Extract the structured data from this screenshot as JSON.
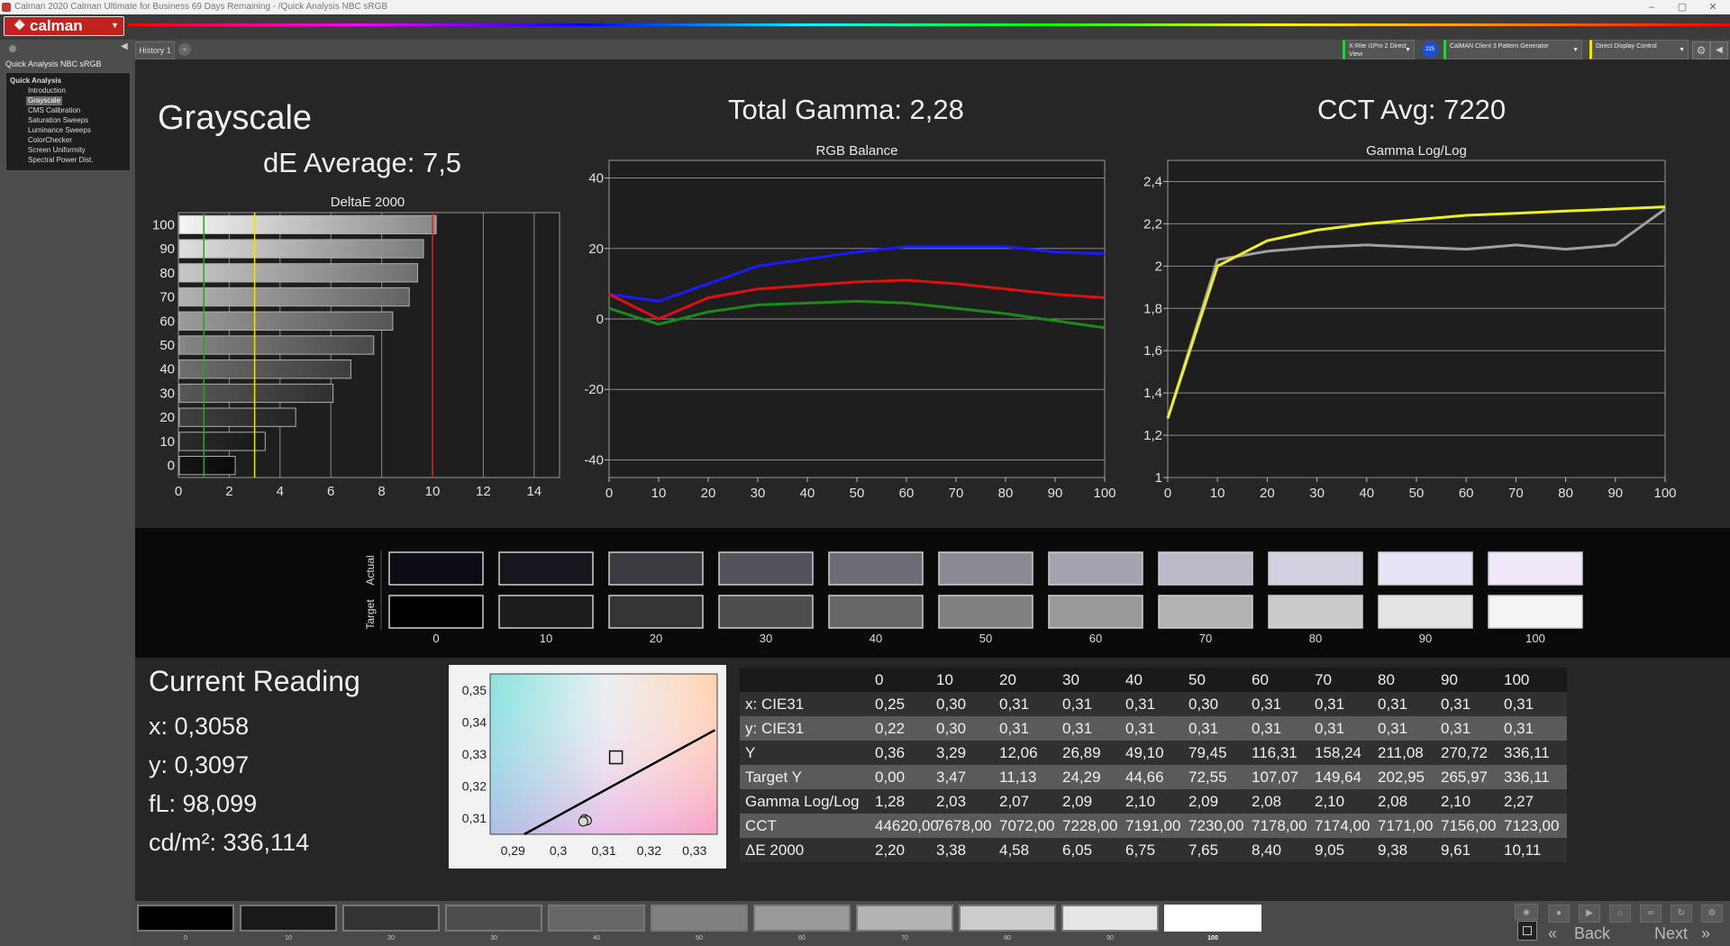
{
  "window": {
    "title": "Calman 2020 Calman Ultimate for Business 69 Days Remaining  - /Quick Analysis NBC sRGB",
    "controls": [
      "–",
      "▢",
      "✕"
    ]
  },
  "app": {
    "logo": "calman"
  },
  "sidebar": {
    "workflow_title": "Quick Analysis NBC sRGB",
    "tree_root": "Quick Analysis",
    "items": [
      "Introduction",
      "Grayscale",
      "CMS Calibration",
      "Saturation Sweeps",
      "Luminance Sweeps",
      "ColorChecker",
      "Screen Uniformity",
      "Spectral Power Dist."
    ],
    "selected_index": 1
  },
  "tabs": {
    "history": "History 1"
  },
  "devices": {
    "meter": "X-Rite i1Pro 2 Direct View",
    "meter_badge": "225",
    "pattern_gen": "CalMAN Client 3 Pattern Generator",
    "display_control": "Direct Display Control"
  },
  "summary": {
    "page_title": "Grayscale",
    "de_average": "dE Average: 7,5",
    "total_gamma": "Total Gamma: 2,28",
    "cct_avg": "CCT Avg: 7220"
  },
  "chart_data": [
    {
      "type": "bar",
      "title": "DeltaE 2000",
      "categories": [
        "0",
        "10",
        "20",
        "30",
        "40",
        "50",
        "60",
        "70",
        "80",
        "90",
        "100"
      ],
      "values": [
        2.2,
        3.38,
        4.58,
        6.05,
        6.75,
        7.65,
        8.4,
        9.05,
        9.38,
        9.61,
        10.11
      ],
      "xlim": [
        0,
        15
      ],
      "xticks": [
        "0",
        "2",
        "4",
        "6",
        "8",
        "10",
        "12",
        "14"
      ],
      "reference_lines": [
        {
          "value": 1,
          "color": "#2ca02c"
        },
        {
          "value": 3,
          "color": "#e6e600"
        },
        {
          "value": 10,
          "color": "#e02020"
        }
      ],
      "orientation": "horizontal"
    },
    {
      "type": "line",
      "title": "RGB Balance",
      "x": [
        0,
        10,
        20,
        30,
        40,
        50,
        60,
        70,
        80,
        90,
        100
      ],
      "ylim": [
        -45,
        45
      ],
      "yticks": [
        "40",
        "20",
        "0",
        "-20",
        "-40"
      ],
      "xticks": [
        "0",
        "10",
        "20",
        "30",
        "40",
        "50",
        "60",
        "70",
        "80",
        "90",
        "100"
      ],
      "series": [
        {
          "color": "#1a1aff",
          "values": [
            7,
            5,
            10,
            15,
            17,
            19,
            20.5,
            20.5,
            20.5,
            19,
            18.5
          ]
        },
        {
          "color": "#e01010",
          "values": [
            7,
            0,
            6,
            8.5,
            9.5,
            10.5,
            11,
            10,
            8.5,
            7,
            6
          ]
        },
        {
          "color": "#1a8a1a",
          "values": [
            3,
            -1.5,
            2,
            4,
            4.5,
            5,
            4.5,
            3,
            1.5,
            -0.5,
            -2.5
          ]
        }
      ]
    },
    {
      "type": "line",
      "title": "Gamma Log/Log",
      "x": [
        0,
        10,
        20,
        30,
        40,
        50,
        60,
        70,
        80,
        90,
        100
      ],
      "ylim": [
        1,
        2.5
      ],
      "yticks": [
        "2,4",
        "2,2",
        "2",
        "1,8",
        "1,6",
        "1,4",
        "1,2",
        "1"
      ],
      "xticks": [
        "0",
        "10",
        "20",
        "30",
        "40",
        "50",
        "60",
        "70",
        "80",
        "90",
        "100"
      ],
      "series": [
        {
          "color": "#a0a0a0",
          "values": [
            1.28,
            2.03,
            2.07,
            2.09,
            2.1,
            2.09,
            2.08,
            2.1,
            2.08,
            2.1,
            2.27
          ]
        },
        {
          "color": "#f0f020",
          "values": [
            1.28,
            2.0,
            2.12,
            2.17,
            2.2,
            2.22,
            2.24,
            2.25,
            2.26,
            2.27,
            2.28
          ]
        }
      ]
    },
    {
      "type": "scatter",
      "title": "",
      "xlim": [
        0.285,
        0.335
      ],
      "ylim": [
        0.305,
        0.355
      ],
      "xticks": [
        "0,29",
        "0,3",
        "0,31",
        "0,32",
        "0,33"
      ],
      "yticks": [
        "0,35",
        "0,34",
        "0,33",
        "0,32",
        "0,31"
      ],
      "target": {
        "x": 0.3127,
        "y": 0.329
      },
      "points": [
        {
          "x": 0.3058,
          "y": 0.3097
        },
        {
          "x": 0.3063,
          "y": 0.3093
        },
        {
          "x": 0.3055,
          "y": 0.309
        }
      ]
    }
  ],
  "swatches": {
    "row_actual": "Actual",
    "row_target": "Target",
    "labels": [
      "0",
      "10",
      "20",
      "30",
      "40",
      "50",
      "60",
      "70",
      "80",
      "90",
      "100"
    ],
    "actual_colors": [
      "#0d0b14",
      "#18161d",
      "#3d3a42",
      "#55525b",
      "#6e6b75",
      "#8c8894",
      "#a7a2b0",
      "#bdb8c8",
      "#d3cfe0",
      "#e8e3f6",
      "#efe9fb"
    ],
    "target_colors": [
      "#000000",
      "#1c1c1c",
      "#353535",
      "#4e4e4e",
      "#676767",
      "#808080",
      "#999999",
      "#b2b2b2",
      "#cbcbcb",
      "#e4e4e4",
      "#f4f4f4"
    ]
  },
  "reading": {
    "title": "Current Reading",
    "x": "x: 0,3058",
    "y": "y: 0,3097",
    "fl": "fL: 98,099",
    "cdm2": "cd/m²: 336,114"
  },
  "table": {
    "headers": [
      "",
      "0",
      "10",
      "20",
      "30",
      "40",
      "50",
      "60",
      "70",
      "80",
      "90",
      "100"
    ],
    "rows": [
      [
        "x: CIE31",
        "0,25",
        "0,30",
        "0,31",
        "0,31",
        "0,31",
        "0,30",
        "0,31",
        "0,31",
        "0,31",
        "0,31",
        "0,31"
      ],
      [
        "y: CIE31",
        "0,22",
        "0,30",
        "0,31",
        "0,31",
        "0,31",
        "0,31",
        "0,31",
        "0,31",
        "0,31",
        "0,31",
        "0,31"
      ],
      [
        "Y",
        "0,36",
        "3,29",
        "12,06",
        "26,89",
        "49,10",
        "79,45",
        "116,31",
        "158,24",
        "211,08",
        "270,72",
        "336,11"
      ],
      [
        "Target Y",
        "0,00",
        "3,47",
        "11,13",
        "24,29",
        "44,66",
        "72,55",
        "107,07",
        "149,64",
        "202,95",
        "265,97",
        "336,11"
      ],
      [
        "Gamma Log/Log",
        "1,28",
        "2,03",
        "2,07",
        "2,09",
        "2,10",
        "2,09",
        "2,08",
        "2,10",
        "2,08",
        "2,10",
        "2,27"
      ],
      [
        "CCT",
        "44620,00",
        "7678,00",
        "7072,00",
        "7228,00",
        "7191,00",
        "7230,00",
        "7178,00",
        "7174,00",
        "7171,00",
        "7156,00",
        "7123,00"
      ],
      [
        "ΔE 2000",
        "2,20",
        "3,38",
        "4,58",
        "6,05",
        "6,75",
        "7,65",
        "8,40",
        "9,05",
        "9,38",
        "9,61",
        "10,11"
      ]
    ]
  },
  "patches": {
    "labels": [
      "0",
      "10",
      "20",
      "30",
      "40",
      "50",
      "60",
      "70",
      "80",
      "90",
      "100"
    ],
    "colors": [
      "#000000",
      "#1a1a1a",
      "#333333",
      "#4d4d4d",
      "#666666",
      "#808080",
      "#999999",
      "#b3b3b3",
      "#cccccc",
      "#e6e6e6",
      "#ffffff"
    ],
    "selected_index": 10
  },
  "nav": {
    "back": "Back",
    "next": "Next"
  }
}
